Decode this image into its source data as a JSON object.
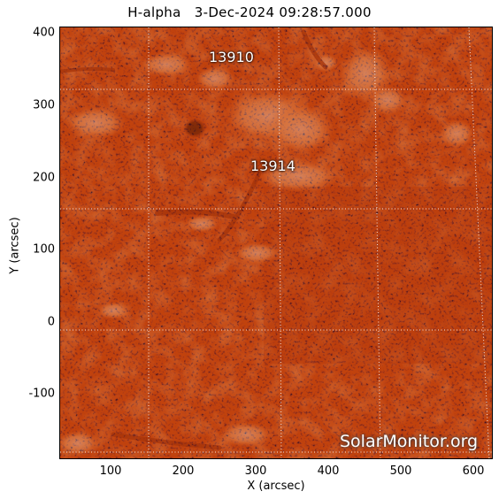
{
  "title": "H-alpha   3-Dec-2024 09:28:57.000",
  "xlabel": "X (arcsec)",
  "ylabel": "Y (arcsec)",
  "watermark": "SolarMonitor.org",
  "regions": [
    "13910",
    "13914"
  ],
  "colors": {
    "background": "#c1420f",
    "bright": "#ffe4c0",
    "dark": "#1a0500",
    "grid": "#ffffff"
  },
  "chart_data": {
    "type": "heatmap",
    "xlim": [
      30,
      630
    ],
    "ylim": [
      -190,
      410
    ],
    "x_ticks": [
      "100",
      "200",
      "300",
      "400",
      "500",
      "600"
    ],
    "y_ticks": [
      "-100",
      "0",
      "100",
      "200",
      "300",
      "400"
    ],
    "grid": "dotted",
    "regions": [
      {
        "label": "13910",
        "x": 270,
        "y": 337
      },
      {
        "label": "13914",
        "x": 330,
        "y": 212
      }
    ]
  }
}
